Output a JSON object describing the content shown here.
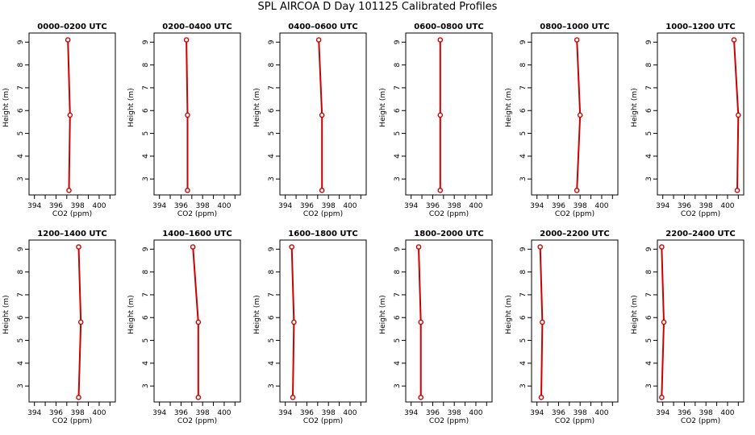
{
  "title": "SPL AIRCOA D  Day 101125  Calibrated Profiles",
  "colors": {
    "line": "#cc0000",
    "axis": "#000000",
    "background": "#ffffff"
  },
  "chart_data": {
    "type": "line",
    "xlabel": "CO2 (ppm)",
    "ylabel": "Height (m)",
    "xlim": [
      393.5,
      401.5
    ],
    "ylim": [
      2.3,
      9.4
    ],
    "xticks": [
      394,
      396,
      398,
      400
    ],
    "xticks_minor": [
      395,
      397,
      399,
      401
    ],
    "yticks": [
      3,
      4,
      5,
      6,
      7,
      8,
      9
    ],
    "heights": [
      9.1,
      5.8,
      2.5
    ],
    "grid": false,
    "legend": "none",
    "panels": [
      {
        "title": "0000–0200 UTC",
        "co2": [
          397.1,
          397.3,
          397.2
        ]
      },
      {
        "title": "0200–0400 UTC",
        "co2": [
          396.5,
          396.6,
          396.6
        ]
      },
      {
        "title": "0400–0600 UTC",
        "co2": [
          397.1,
          397.4,
          397.4
        ]
      },
      {
        "title": "0600–0800 UTC",
        "co2": [
          396.7,
          396.7,
          396.7
        ]
      },
      {
        "title": "0800–1000 UTC",
        "co2": [
          397.7,
          398.0,
          397.7
        ]
      },
      {
        "title": "1000–1200 UTC",
        "co2": [
          400.6,
          401.0,
          400.9
        ]
      },
      {
        "title": "1200–1400 UTC",
        "co2": [
          398.1,
          398.3,
          398.1
        ]
      },
      {
        "title": "1400–1600 UTC",
        "co2": [
          397.1,
          397.6,
          397.6
        ]
      },
      {
        "title": "1600–1800 UTC",
        "co2": [
          394.6,
          394.8,
          394.7
        ]
      },
      {
        "title": "1800–2000 UTC",
        "co2": [
          394.7,
          394.9,
          394.9
        ]
      },
      {
        "title": "2000–2200 UTC",
        "co2": [
          394.3,
          394.5,
          394.4
        ]
      },
      {
        "title": "2200–2400 UTC",
        "co2": [
          393.9,
          394.1,
          393.9
        ]
      }
    ]
  }
}
